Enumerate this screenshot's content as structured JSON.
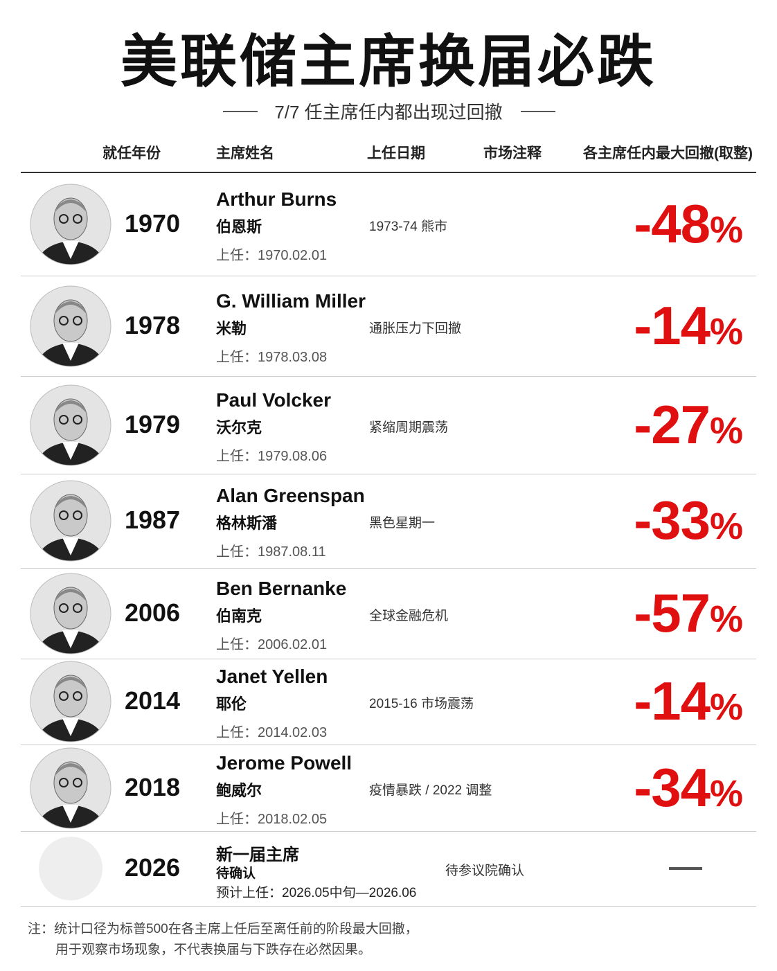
{
  "header": {
    "title": "美联储主席换届必跌",
    "subtitle": "7/7 任主席任内都出现过回撤"
  },
  "table": {
    "columns": [
      "就任年份",
      "主席姓名",
      "上任日期",
      "市场注释",
      "各主席任内最大回撤(取整)"
    ],
    "rows": [
      {
        "year": "1970",
        "name_en": "Arthur Burns",
        "name_cn": "伯恩斯",
        "date": "上任：1970.02.01",
        "note": "1973-74 熊市",
        "drawdown": "-48",
        "unit": "%"
      },
      {
        "year": "1978",
        "name_en": "G. William Miller",
        "name_cn": "米勒",
        "date": "上任：1978.03.08",
        "note": "通胀压力下回撤",
        "drawdown": "-14",
        "unit": "%"
      },
      {
        "year": "1979",
        "name_en": "Paul Volcker",
        "name_cn": "沃尔克",
        "date": "上任：1979.08.06",
        "note": "紧缩周期震荡",
        "drawdown": "-27",
        "unit": "%"
      },
      {
        "year": "1987",
        "name_en": "Alan Greenspan",
        "name_cn": "格林斯潘",
        "date": "上任：1987.08.11",
        "note": "黑色星期一",
        "drawdown": "-33",
        "unit": "%"
      },
      {
        "year": "2006",
        "name_en": "Ben Bernanke",
        "name_cn": "伯南克",
        "date": "上任：2006.02.01",
        "note": "全球金融危机",
        "drawdown": "-57",
        "unit": "%"
      },
      {
        "year": "2014",
        "name_en": "Janet Yellen",
        "name_cn": "耶伦",
        "date": "上任：2014.02.03",
        "note": "2015-16 市场震荡",
        "drawdown": "-14",
        "unit": "%"
      },
      {
        "year": "2018",
        "name_en": "Jerome Powell",
        "name_cn": "鲍威尔",
        "date": "上任：2018.02.05",
        "note": "疫情暴跌 / 2022 调整",
        "drawdown": "-34",
        "unit": "%"
      },
      {
        "year": "2026",
        "name_en": "新一届主席",
        "name_cn": "待确认",
        "date": "预计上任：2026.05中旬—2026.06",
        "note": "待参议院确认"
      }
    ]
  },
  "footnote": [
    "注：统计口径为标普500在各主席上任后至离任前的阶段最大回撤，",
    "用于观察市场现象，不代表换届与下跌存在必然因果。"
  ]
}
